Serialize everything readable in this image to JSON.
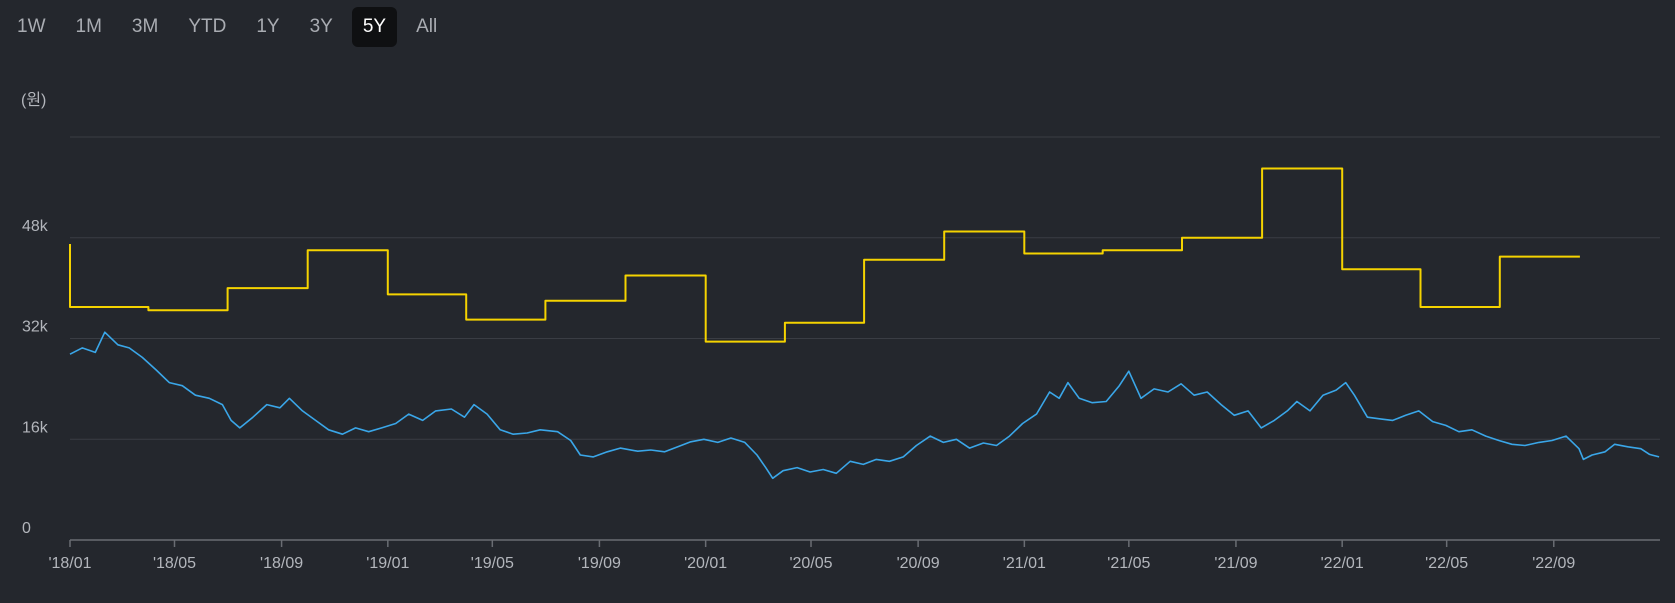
{
  "range_tabs": [
    {
      "label": "1W",
      "active": false
    },
    {
      "label": "1M",
      "active": false
    },
    {
      "label": "3M",
      "active": false
    },
    {
      "label": "YTD",
      "active": false
    },
    {
      "label": "1Y",
      "active": false
    },
    {
      "label": "3Y",
      "active": false
    },
    {
      "label": "5Y",
      "active": true
    },
    {
      "label": "All",
      "active": false
    }
  ],
  "chart_data": {
    "type": "line",
    "unit_label": "(원)",
    "ylim": [
      0,
      64000
    ],
    "y_ticks": [
      {
        "value": 0,
        "label": "0"
      },
      {
        "value": 16000,
        "label": "16k"
      },
      {
        "value": 32000,
        "label": "32k"
      },
      {
        "value": 48000,
        "label": "48k"
      }
    ],
    "grid": true,
    "x_ticks": [
      "'18/01",
      "'18/05",
      "'18/09",
      "'19/01",
      "'19/05",
      "'19/09",
      "'20/01",
      "'20/05",
      "'20/09",
      "'21/01",
      "'21/05",
      "'21/09",
      "'22/01",
      "'22/05",
      "'22/09"
    ],
    "series": [
      {
        "color": "#f5d300",
        "step": true,
        "points": [
          [
            "2018-01-01",
            47000
          ],
          [
            "2018-01-01",
            37000
          ],
          [
            "2018-04-01",
            36500
          ],
          [
            "2018-07-01",
            40000
          ],
          [
            "2018-10-01",
            46000
          ],
          [
            "2019-01-01",
            39000
          ],
          [
            "2019-04-01",
            35000
          ],
          [
            "2019-07-01",
            38000
          ],
          [
            "2019-10-01",
            42000
          ],
          [
            "2020-01-01",
            31500
          ],
          [
            "2020-04-01",
            34500
          ],
          [
            "2020-07-01",
            44500
          ],
          [
            "2020-10-01",
            49000
          ],
          [
            "2021-01-01",
            45500
          ],
          [
            "2021-04-01",
            46000
          ],
          [
            "2021-07-01",
            48000
          ],
          [
            "2021-10-01",
            59000
          ],
          [
            "2022-01-01",
            43000
          ],
          [
            "2022-04-01",
            37000
          ],
          [
            "2022-07-01",
            45000
          ],
          [
            "2022-10-01",
            45000
          ]
        ]
      },
      {
        "color": "#3aa6e8",
        "step": false,
        "points": [
          [
            "2018-01-01",
            29500
          ],
          [
            "2018-01-15",
            30500
          ],
          [
            "2018-01-30",
            29800
          ],
          [
            "2018-02-10",
            33000
          ],
          [
            "2018-02-25",
            31000
          ],
          [
            "2018-03-10",
            30500
          ],
          [
            "2018-03-25",
            29000
          ],
          [
            "2018-04-10",
            27000
          ],
          [
            "2018-04-25",
            25000
          ],
          [
            "2018-05-10",
            24500
          ],
          [
            "2018-05-25",
            23000
          ],
          [
            "2018-06-10",
            22500
          ],
          [
            "2018-06-25",
            21500
          ],
          [
            "2018-07-05",
            19000
          ],
          [
            "2018-07-15",
            17800
          ],
          [
            "2018-07-30",
            19500
          ],
          [
            "2018-08-15",
            21500
          ],
          [
            "2018-08-30",
            21000
          ],
          [
            "2018-09-10",
            22500
          ],
          [
            "2018-09-25",
            20500
          ],
          [
            "2018-10-10",
            19000
          ],
          [
            "2018-10-25",
            17500
          ],
          [
            "2018-11-10",
            16800
          ],
          [
            "2018-11-25",
            17800
          ],
          [
            "2018-12-10",
            17200
          ],
          [
            "2018-12-25",
            17800
          ],
          [
            "2019-01-10",
            18500
          ],
          [
            "2019-01-25",
            20000
          ],
          [
            "2019-02-10",
            19000
          ],
          [
            "2019-02-25",
            20500
          ],
          [
            "2019-03-15",
            20800
          ],
          [
            "2019-03-30",
            19500
          ],
          [
            "2019-04-10",
            21500
          ],
          [
            "2019-04-25",
            20000
          ],
          [
            "2019-05-10",
            17500
          ],
          [
            "2019-05-25",
            16800
          ],
          [
            "2019-06-10",
            17000
          ],
          [
            "2019-06-25",
            17500
          ],
          [
            "2019-07-15",
            17200
          ],
          [
            "2019-07-30",
            15800
          ],
          [
            "2019-08-10",
            13500
          ],
          [
            "2019-08-25",
            13200
          ],
          [
            "2019-09-10",
            14000
          ],
          [
            "2019-09-25",
            14600
          ],
          [
            "2019-10-15",
            14100
          ],
          [
            "2019-10-30",
            14300
          ],
          [
            "2019-11-15",
            14000
          ],
          [
            "2019-11-30",
            14800
          ],
          [
            "2019-12-15",
            15600
          ],
          [
            "2019-12-30",
            16000
          ],
          [
            "2020-01-15",
            15500
          ],
          [
            "2020-01-30",
            16200
          ],
          [
            "2020-02-15",
            15500
          ],
          [
            "2020-02-29",
            13500
          ],
          [
            "2020-03-10",
            11500
          ],
          [
            "2020-03-18",
            9800
          ],
          [
            "2020-03-30",
            11000
          ],
          [
            "2020-04-15",
            11500
          ],
          [
            "2020-04-30",
            10800
          ],
          [
            "2020-05-15",
            11200
          ],
          [
            "2020-05-30",
            10600
          ],
          [
            "2020-06-15",
            12500
          ],
          [
            "2020-06-30",
            12000
          ],
          [
            "2020-07-15",
            12800
          ],
          [
            "2020-07-30",
            12500
          ],
          [
            "2020-08-15",
            13200
          ],
          [
            "2020-08-30",
            15000
          ],
          [
            "2020-09-15",
            16500
          ],
          [
            "2020-09-30",
            15500
          ],
          [
            "2020-10-15",
            16000
          ],
          [
            "2020-10-30",
            14600
          ],
          [
            "2020-11-15",
            15400
          ],
          [
            "2020-11-30",
            15000
          ],
          [
            "2020-12-15",
            16500
          ],
          [
            "2020-12-30",
            18500
          ],
          [
            "2021-01-15",
            20000
          ],
          [
            "2021-01-30",
            23500
          ],
          [
            "2021-02-10",
            22500
          ],
          [
            "2021-02-20",
            25000
          ],
          [
            "2021-03-05",
            22500
          ],
          [
            "2021-03-20",
            21800
          ],
          [
            "2021-04-05",
            22000
          ],
          [
            "2021-04-20",
            24500
          ],
          [
            "2021-05-01",
            26800
          ],
          [
            "2021-05-15",
            22500
          ],
          [
            "2021-05-30",
            24000
          ],
          [
            "2021-06-15",
            23500
          ],
          [
            "2021-06-30",
            24800
          ],
          [
            "2021-07-15",
            23000
          ],
          [
            "2021-07-30",
            23500
          ],
          [
            "2021-08-15",
            21500
          ],
          [
            "2021-08-30",
            19800
          ],
          [
            "2021-09-15",
            20500
          ],
          [
            "2021-09-30",
            17800
          ],
          [
            "2021-10-15",
            19000
          ],
          [
            "2021-10-30",
            20500
          ],
          [
            "2021-11-10",
            22000
          ],
          [
            "2021-11-25",
            20500
          ],
          [
            "2021-12-10",
            23000
          ],
          [
            "2021-12-25",
            23800
          ],
          [
            "2022-01-05",
            25000
          ],
          [
            "2022-01-15",
            23000
          ],
          [
            "2022-01-30",
            19500
          ],
          [
            "2022-02-15",
            19200
          ],
          [
            "2022-02-28",
            19000
          ],
          [
            "2022-03-15",
            19800
          ],
          [
            "2022-03-30",
            20500
          ],
          [
            "2022-04-15",
            18800
          ],
          [
            "2022-04-30",
            18200
          ],
          [
            "2022-05-15",
            17200
          ],
          [
            "2022-05-30",
            17500
          ],
          [
            "2022-06-15",
            16500
          ],
          [
            "2022-06-30",
            15800
          ],
          [
            "2022-07-15",
            15200
          ],
          [
            "2022-07-30",
            15000
          ],
          [
            "2022-08-15",
            15500
          ],
          [
            "2022-08-30",
            15800
          ],
          [
            "2022-09-15",
            16500
          ],
          [
            "2022-09-30",
            14500
          ],
          [
            "2022-10-05",
            12800
          ],
          [
            "2022-10-15",
            13500
          ],
          [
            "2022-10-30",
            14000
          ],
          [
            "2022-11-10",
            15200
          ],
          [
            "2022-11-25",
            14800
          ],
          [
            "2022-12-10",
            14500
          ],
          [
            "2022-12-20",
            13600
          ],
          [
            "2022-12-31",
            13200
          ]
        ]
      }
    ]
  }
}
